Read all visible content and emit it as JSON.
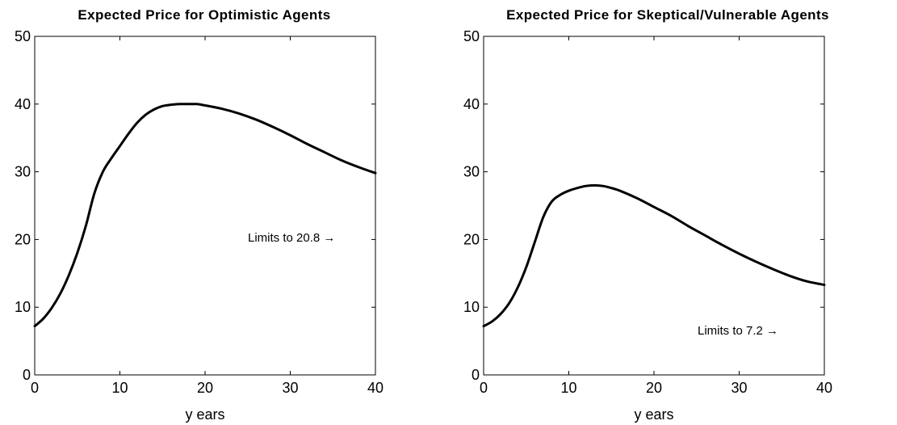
{
  "chart_data": [
    {
      "type": "line",
      "title": "Expected Price for Optimistic Agents",
      "xlabel": "y ears",
      "ylabel": "",
      "xlim": [
        0,
        40
      ],
      "ylim": [
        0,
        50
      ],
      "xticks": [
        "0",
        "10",
        "20",
        "30",
        "40"
      ],
      "yticks": [
        "0",
        "10",
        "20",
        "30",
        "40",
        "50"
      ],
      "grid": false,
      "annotation": "Limits to 20.8  →",
      "series": [
        {
          "x": [
            0,
            1,
            2,
            3,
            4,
            5,
            6,
            7,
            8,
            9,
            10,
            11,
            12,
            13,
            14,
            15,
            16,
            17,
            18,
            19,
            20,
            22,
            24,
            26,
            28,
            30,
            32,
            34,
            36,
            38,
            40
          ],
          "values": [
            7.2,
            8.3,
            9.9,
            12.0,
            14.7,
            18.0,
            22.0,
            26.8,
            30.0,
            32.0,
            33.8,
            35.6,
            37.2,
            38.4,
            39.2,
            39.7,
            39.9,
            40.0,
            40.0,
            40.0,
            39.8,
            39.3,
            38.6,
            37.7,
            36.6,
            35.4,
            34.1,
            32.9,
            31.7,
            30.7,
            29.8
          ]
        }
      ]
    },
    {
      "type": "line",
      "title": "Expected Price for Skeptical/Vulnerable Agents",
      "xlabel": "y ears",
      "ylabel": "",
      "xlim": [
        0,
        40
      ],
      "ylim": [
        0,
        50
      ],
      "xticks": [
        "0",
        "10",
        "20",
        "30",
        "40"
      ],
      "yticks": [
        "0",
        "10",
        "20",
        "30",
        "40",
        "50"
      ],
      "grid": false,
      "annotation": "Limits to 7.2  →",
      "series": [
        {
          "x": [
            0,
            1,
            2,
            3,
            4,
            5,
            6,
            7,
            8,
            9,
            10,
            11,
            12,
            13,
            14,
            15,
            16,
            18,
            20,
            22,
            24,
            26,
            28,
            30,
            32,
            34,
            36,
            38,
            40
          ],
          "values": [
            7.2,
            7.9,
            9.0,
            10.6,
            12.9,
            15.9,
            19.6,
            23.3,
            25.6,
            26.6,
            27.2,
            27.6,
            27.9,
            28.0,
            27.9,
            27.6,
            27.2,
            26.1,
            24.8,
            23.5,
            22.0,
            20.6,
            19.2,
            17.9,
            16.7,
            15.6,
            14.6,
            13.8,
            13.3
          ]
        }
      ]
    }
  ]
}
